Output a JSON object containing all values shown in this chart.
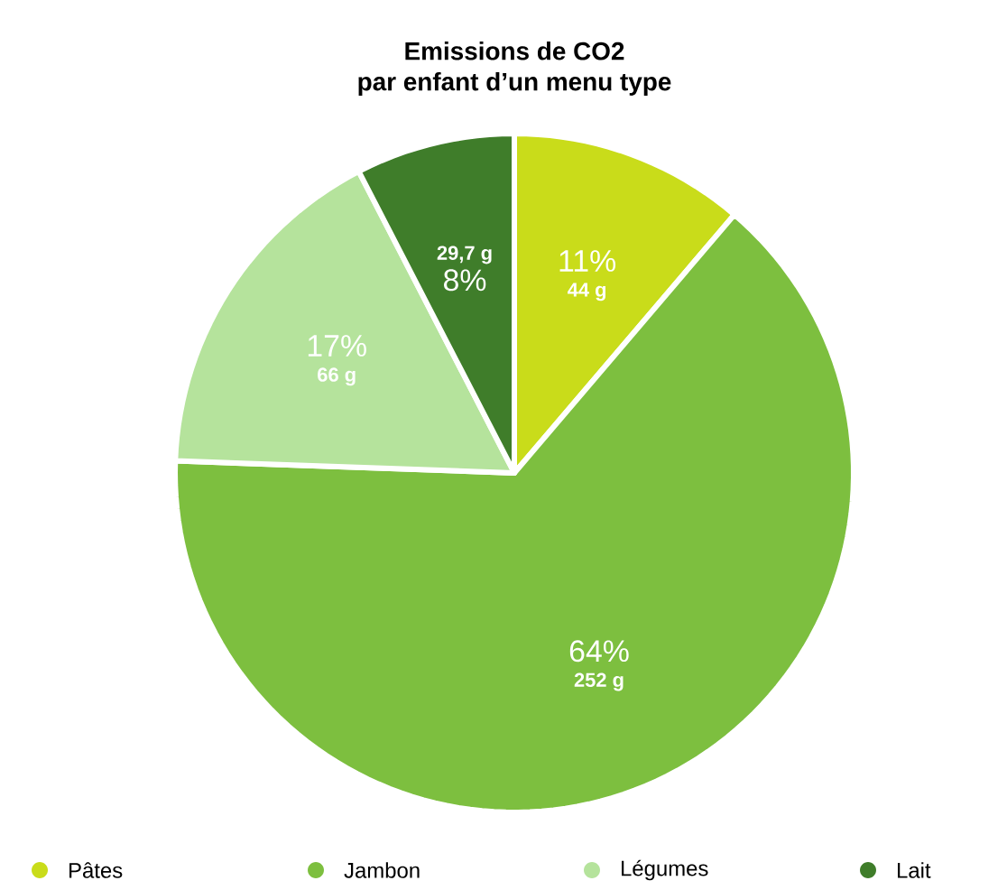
{
  "chart_data": {
    "type": "pie",
    "title": "Emissions de CO2\npar enfant d’un menu type",
    "categories": [
      "Pâtes",
      "Jambon",
      "Légumes",
      "Lait"
    ],
    "values": [
      44,
      252,
      66,
      29.7
    ],
    "colors": [
      "#c9dc1a",
      "#7dbf3f",
      "#b5e39c",
      "#3f7d2a"
    ],
    "value_labels": [
      "44 g",
      "252 g",
      "66 g",
      "29,7 g"
    ],
    "annotations": [
      "11%",
      "64%",
      "17%",
      "8%"
    ],
    "legend": "bottom"
  }
}
